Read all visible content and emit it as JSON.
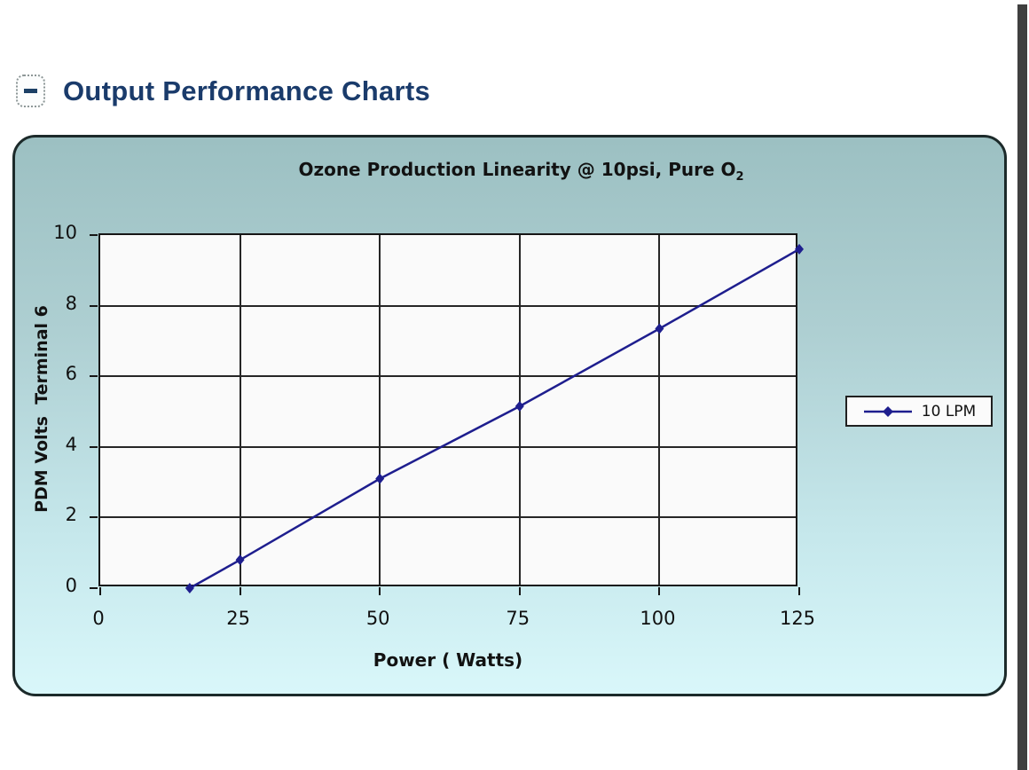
{
  "page": {
    "background": "#ffffff",
    "scan_edge_color": "#3f3f3f"
  },
  "header": {
    "collapse_icon": "minus",
    "title": "Output Performance Charts",
    "title_color": "#1a3b6b"
  },
  "chart_data": {
    "type": "line",
    "title": "Ozone Production Linearity @ 10psi, Pure O₂",
    "title_main": "Ozone Production Linearity @ 10psi, Pure O",
    "title_sub": "2",
    "xlabel": "Power ( Watts)",
    "ylabel": "PDM Volts  Terminal 6",
    "xlim": [
      0,
      125
    ],
    "ylim": [
      0,
      10
    ],
    "xticks": [
      0,
      25,
      50,
      75,
      100,
      125
    ],
    "yticks": [
      0,
      2,
      4,
      6,
      8,
      10
    ],
    "grid": true,
    "plot_background": "#fafafa",
    "gridline_color": "#262626",
    "panel_gradient_top": "#9cc0c2",
    "panel_gradient_bottom": "#d9f7fa",
    "legend": {
      "position": "right-middle",
      "background": "#fbfbfb",
      "border_color": "#202020",
      "entries": [
        {
          "label": "10 LPM",
          "color": "#1e1e8e",
          "marker": "diamond"
        }
      ]
    },
    "series": [
      {
        "name": "10 LPM",
        "color": "#1e1e8e",
        "marker": "diamond",
        "x": [
          16,
          25,
          50,
          75,
          100,
          125
        ],
        "y": [
          0,
          0.8,
          3.1,
          5.15,
          7.35,
          9.6
        ]
      }
    ]
  }
}
